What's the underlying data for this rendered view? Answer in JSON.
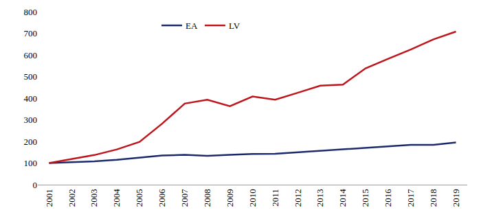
{
  "chart_data": {
    "type": "line",
    "categories": [
      "2001",
      "2002",
      "2003",
      "2004",
      "2005",
      "2006",
      "2007",
      "2008",
      "2009",
      "2010",
      "2011",
      "2012",
      "2013",
      "2014",
      "2015",
      "2016",
      "2017",
      "2018",
      "2019"
    ],
    "series": [
      {
        "name": "EA",
        "color": "#1b2a6b",
        "values": [
          100,
          103,
          108,
          115,
          125,
          135,
          138,
          133,
          138,
          142,
          143,
          150,
          155,
          162,
          170,
          177,
          184,
          184,
          195
        ]
      },
      {
        "name": "LV",
        "color": "#c0141c",
        "values": [
          100,
          118,
          137,
          163,
          198,
          282,
          375,
          393,
          363,
          408,
          393,
          425,
          458,
          463,
          538,
          582,
          625,
          672,
          708
        ]
      }
    ],
    "ylim": [
      0,
      800
    ],
    "yticks": [
      0,
      100,
      200,
      300,
      400,
      500,
      600,
      700,
      800
    ],
    "grid": false,
    "legend": "top"
  }
}
